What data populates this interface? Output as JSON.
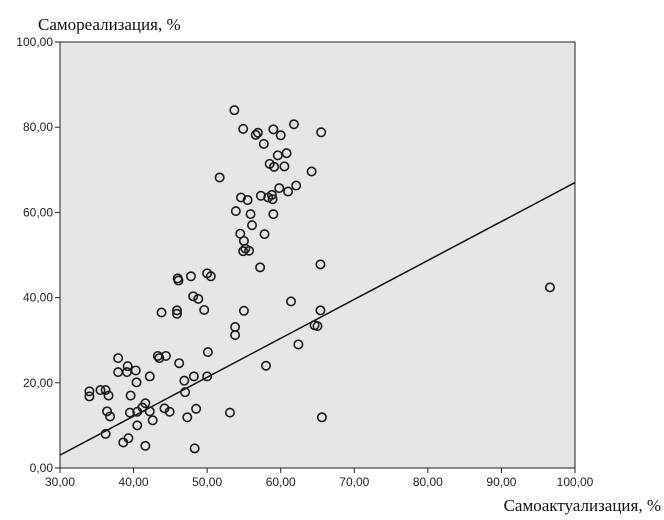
{
  "chart_data": {
    "type": "scatter",
    "ylabel": "Самореализация, %",
    "xlabel": "Самоактуализация, %",
    "xlim": [
      30,
      100
    ],
    "ylim": [
      0,
      100
    ],
    "x_ticks": [
      "30,00",
      "40,00",
      "50,00",
      "60,00",
      "70,00",
      "80,00",
      "90,00",
      "100,00"
    ],
    "y_ticks": [
      "0,00",
      "20,00",
      "40,00",
      "60,00",
      "80,00",
      "100,00"
    ],
    "grid": false,
    "background": "#e6e6e6",
    "point_color": "#1a1a1a",
    "fit_line": {
      "intercept": -24.4,
      "slope": 0.914
    },
    "points": [
      {
        "x": 34.0,
        "y": 18.0
      },
      {
        "x": 34.0,
        "y": 16.8
      },
      {
        "x": 35.5,
        "y": 18.3
      },
      {
        "x": 36.2,
        "y": 18.3
      },
      {
        "x": 36.6,
        "y": 17.0
      },
      {
        "x": 36.4,
        "y": 13.3
      },
      {
        "x": 36.2,
        "y": 8.0
      },
      {
        "x": 36.8,
        "y": 12.1
      },
      {
        "x": 37.9,
        "y": 25.8
      },
      {
        "x": 37.9,
        "y": 22.5
      },
      {
        "x": 38.6,
        "y": 6.0
      },
      {
        "x": 39.1,
        "y": 22.5
      },
      {
        "x": 39.2,
        "y": 23.9
      },
      {
        "x": 39.3,
        "y": 7.0
      },
      {
        "x": 39.5,
        "y": 13.0
      },
      {
        "x": 39.6,
        "y": 17.0
      },
      {
        "x": 40.3,
        "y": 22.9
      },
      {
        "x": 40.4,
        "y": 20.1
      },
      {
        "x": 40.5,
        "y": 10.0
      },
      {
        "x": 40.5,
        "y": 13.2
      },
      {
        "x": 41.2,
        "y": 14.2
      },
      {
        "x": 41.6,
        "y": 15.2
      },
      {
        "x": 41.6,
        "y": 5.2
      },
      {
        "x": 42.2,
        "y": 21.5
      },
      {
        "x": 42.2,
        "y": 13.3
      },
      {
        "x": 42.6,
        "y": 11.2
      },
      {
        "x": 43.3,
        "y": 26.3
      },
      {
        "x": 43.5,
        "y": 25.8
      },
      {
        "x": 43.8,
        "y": 36.5
      },
      {
        "x": 44.2,
        "y": 14.0
      },
      {
        "x": 44.4,
        "y": 26.3
      },
      {
        "x": 44.9,
        "y": 13.2
      },
      {
        "x": 45.9,
        "y": 37.0
      },
      {
        "x": 45.9,
        "y": 36.2
      },
      {
        "x": 46.0,
        "y": 44.5
      },
      {
        "x": 46.1,
        "y": 44.0
      },
      {
        "x": 46.2,
        "y": 24.6
      },
      {
        "x": 46.9,
        "y": 20.5
      },
      {
        "x": 47.0,
        "y": 17.8
      },
      {
        "x": 47.3,
        "y": 11.9
      },
      {
        "x": 47.8,
        "y": 45.0
      },
      {
        "x": 48.1,
        "y": 40.3
      },
      {
        "x": 48.2,
        "y": 21.5
      },
      {
        "x": 48.3,
        "y": 4.6
      },
      {
        "x": 48.5,
        "y": 13.9
      },
      {
        "x": 48.8,
        "y": 39.7
      },
      {
        "x": 49.6,
        "y": 37.1
      },
      {
        "x": 50.0,
        "y": 45.7
      },
      {
        "x": 50.0,
        "y": 21.5
      },
      {
        "x": 50.1,
        "y": 27.2
      },
      {
        "x": 50.5,
        "y": 45.0
      },
      {
        "x": 51.7,
        "y": 68.2
      },
      {
        "x": 53.1,
        "y": 13.0
      },
      {
        "x": 53.7,
        "y": 84.0
      },
      {
        "x": 53.8,
        "y": 33.1
      },
      {
        "x": 53.8,
        "y": 31.2
      },
      {
        "x": 53.9,
        "y": 60.3
      },
      {
        "x": 54.5,
        "y": 55.0
      },
      {
        "x": 54.6,
        "y": 63.5
      },
      {
        "x": 54.9,
        "y": 79.6
      },
      {
        "x": 54.9,
        "y": 50.9
      },
      {
        "x": 55.0,
        "y": 53.3
      },
      {
        "x": 55.0,
        "y": 36.9
      },
      {
        "x": 55.2,
        "y": 51.5
      },
      {
        "x": 55.5,
        "y": 62.9
      },
      {
        "x": 55.7,
        "y": 51.0
      },
      {
        "x": 55.9,
        "y": 59.6
      },
      {
        "x": 56.1,
        "y": 57.0
      },
      {
        "x": 56.6,
        "y": 78.2
      },
      {
        "x": 56.9,
        "y": 78.7
      },
      {
        "x": 57.2,
        "y": 47.1
      },
      {
        "x": 57.3,
        "y": 63.9
      },
      {
        "x": 57.7,
        "y": 76.1
      },
      {
        "x": 57.8,
        "y": 54.9
      },
      {
        "x": 58.0,
        "y": 24.0
      },
      {
        "x": 58.3,
        "y": 63.5
      },
      {
        "x": 58.5,
        "y": 71.4
      },
      {
        "x": 58.8,
        "y": 64.1
      },
      {
        "x": 58.9,
        "y": 63.1
      },
      {
        "x": 59.0,
        "y": 79.5
      },
      {
        "x": 59.0,
        "y": 59.6
      },
      {
        "x": 59.1,
        "y": 70.7
      },
      {
        "x": 59.6,
        "y": 73.4
      },
      {
        "x": 59.8,
        "y": 65.7
      },
      {
        "x": 60.0,
        "y": 78.1
      },
      {
        "x": 60.5,
        "y": 70.8
      },
      {
        "x": 60.8,
        "y": 73.9
      },
      {
        "x": 61.0,
        "y": 64.9
      },
      {
        "x": 61.4,
        "y": 39.1
      },
      {
        "x": 61.8,
        "y": 80.7
      },
      {
        "x": 62.1,
        "y": 66.3
      },
      {
        "x": 62.4,
        "y": 29.0
      },
      {
        "x": 64.2,
        "y": 69.6
      },
      {
        "x": 64.6,
        "y": 33.5
      },
      {
        "x": 65.0,
        "y": 33.3
      },
      {
        "x": 65.4,
        "y": 47.8
      },
      {
        "x": 65.4,
        "y": 37.0
      },
      {
        "x": 65.5,
        "y": 78.8
      },
      {
        "x": 65.6,
        "y": 11.9
      },
      {
        "x": 96.6,
        "y": 42.4
      }
    ]
  }
}
